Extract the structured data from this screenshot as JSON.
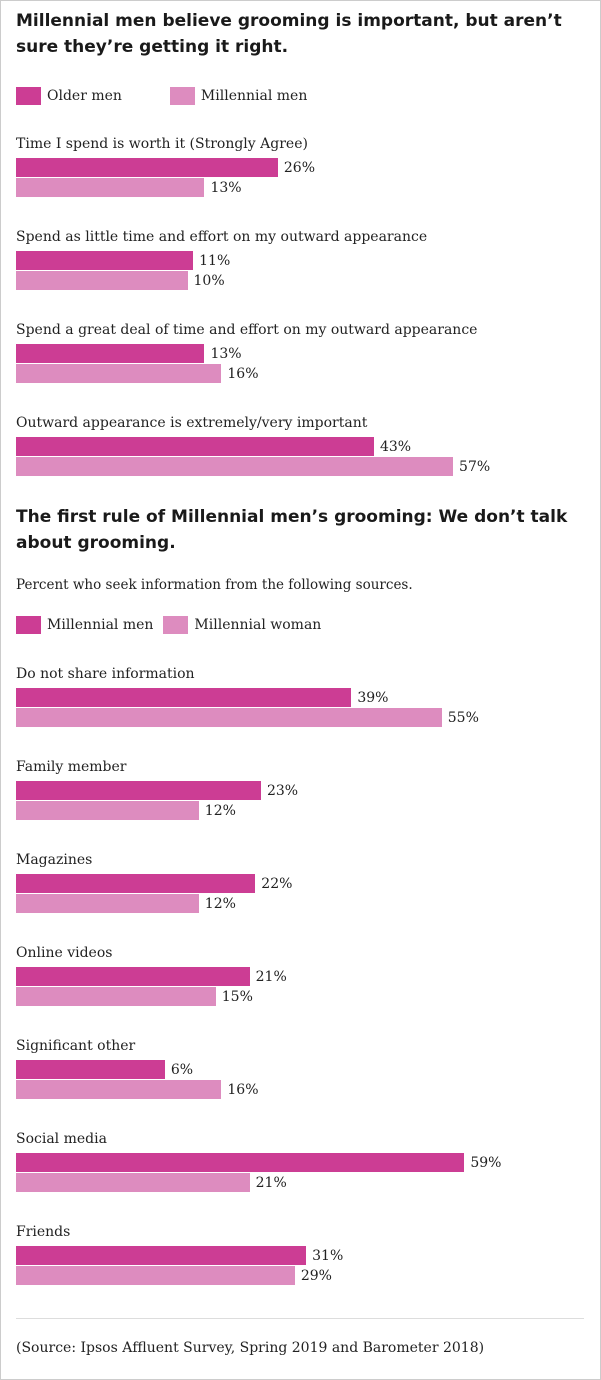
{
  "chart_data": [
    {
      "type": "bar",
      "orientation": "horizontal",
      "title": "Millennial men believe grooming is important, but aren’t sure they’re getting it right.",
      "legend_placement": "top-left",
      "categories": [
        "Time I spend is worth it (Strongly Agree)",
        "Spend as little time and effort on my outward appearance",
        "Spend a great deal of time and effort on my outward appearance",
        "Outward appearance is extremely/very important"
      ],
      "series": [
        {
          "name": "Older men",
          "color": "#cc3d94",
          "values": [
            26,
            11,
            13,
            43
          ],
          "labels": [
            "26%",
            "11%",
            "13%",
            "43%"
          ]
        },
        {
          "name": "Millennial men",
          "color": "#dd8cbf",
          "values": [
            13,
            10,
            16,
            57
          ],
          "labels": [
            "13%",
            "10%",
            "16%",
            "57%"
          ]
        }
      ]
    },
    {
      "type": "bar",
      "orientation": "horizontal",
      "title": "The first rule of Millennial men’s grooming: We don’t talk about grooming.",
      "subtitle": "Percent who seek information from the following sources.",
      "legend_placement": "top-left",
      "categories": [
        "Do not share information",
        "Family member",
        "Magazines",
        "Online videos",
        "Significant other",
        "Social media",
        "Friends"
      ],
      "series": [
        {
          "name": "Millennial men",
          "color": "#cc3d94",
          "values": [
            39,
            23,
            22,
            21,
            6,
            59,
            31
          ],
          "labels": [
            "39%",
            "23%",
            "22%",
            "21%",
            "6%",
            "59%",
            "31%"
          ]
        },
        {
          "name": "Millennial woman",
          "color": "#dd8cbf",
          "values": [
            55,
            12,
            12,
            15,
            16,
            21,
            29
          ],
          "labels": [
            "55%",
            "12%",
            "12%",
            "15%",
            "16%",
            "21%",
            "29%"
          ]
        }
      ]
    }
  ],
  "source": "(Source: Ipsos Affluent Survey, Spring 2019 and Barometer 2018)"
}
